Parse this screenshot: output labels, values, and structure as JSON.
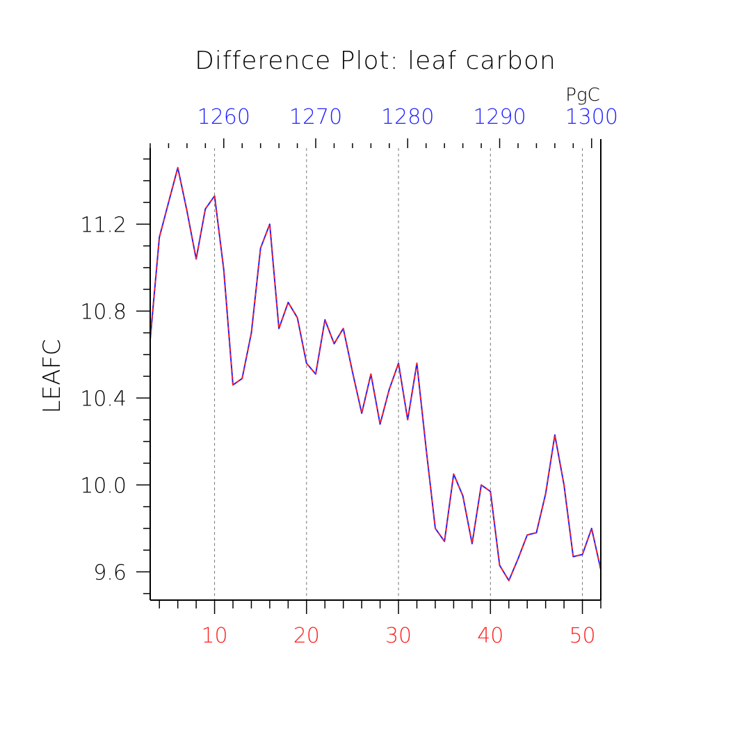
{
  "chart_data": {
    "type": "line",
    "title": "Difference Plot: leaf carbon",
    "units": "PgC",
    "ylabel": "LEAFC",
    "xlabel": "",
    "colors": {
      "bottom_axis": "#ff2020",
      "top_axis": "#2020ff",
      "axes": "#000000",
      "grid": "#777777"
    },
    "x_bottom": {
      "range": [
        3,
        52
      ],
      "ticks": [
        10,
        20,
        30,
        40,
        50
      ]
    },
    "x_top": {
      "range": [
        1252,
        1301
      ],
      "ticks": [
        1260,
        1270,
        1280,
        1290,
        1300
      ]
    },
    "y": {
      "range": [
        9.47,
        11.55
      ],
      "ticks": [
        9.6,
        10.0,
        10.4,
        10.8,
        11.2
      ],
      "tick_labels": [
        "9.6",
        "10.0",
        "10.4",
        "10.8",
        "11.2"
      ]
    },
    "grid": "vertical dashed at bottom-axis major ticks",
    "series": [
      {
        "style": "red and blue dashed (overlapping)",
        "x": [
          3,
          4,
          5,
          6,
          7,
          8,
          9,
          10,
          11,
          12,
          13,
          14,
          15,
          16,
          17,
          18,
          19,
          20,
          21,
          22,
          23,
          24,
          25,
          26,
          27,
          28,
          29,
          30,
          31,
          32,
          33,
          34,
          35,
          36,
          37,
          38,
          39,
          40,
          41,
          42,
          43,
          44,
          45,
          46,
          47,
          48,
          49,
          50,
          51,
          52
        ],
        "values": [
          10.67,
          11.14,
          11.3,
          11.46,
          11.26,
          11.04,
          11.27,
          11.33,
          10.99,
          10.46,
          10.49,
          10.7,
          11.09,
          11.2,
          10.72,
          10.84,
          10.77,
          10.56,
          10.51,
          10.76,
          10.65,
          10.72,
          10.52,
          10.33,
          10.51,
          10.28,
          10.44,
          10.56,
          10.3,
          10.56,
          10.17,
          9.8,
          9.74,
          10.05,
          9.95,
          9.73,
          10.0,
          9.97,
          9.63,
          9.56,
          9.66,
          9.77,
          9.78,
          9.96,
          10.23,
          10.0,
          9.67,
          9.68,
          9.8,
          9.61
        ]
      }
    ]
  }
}
